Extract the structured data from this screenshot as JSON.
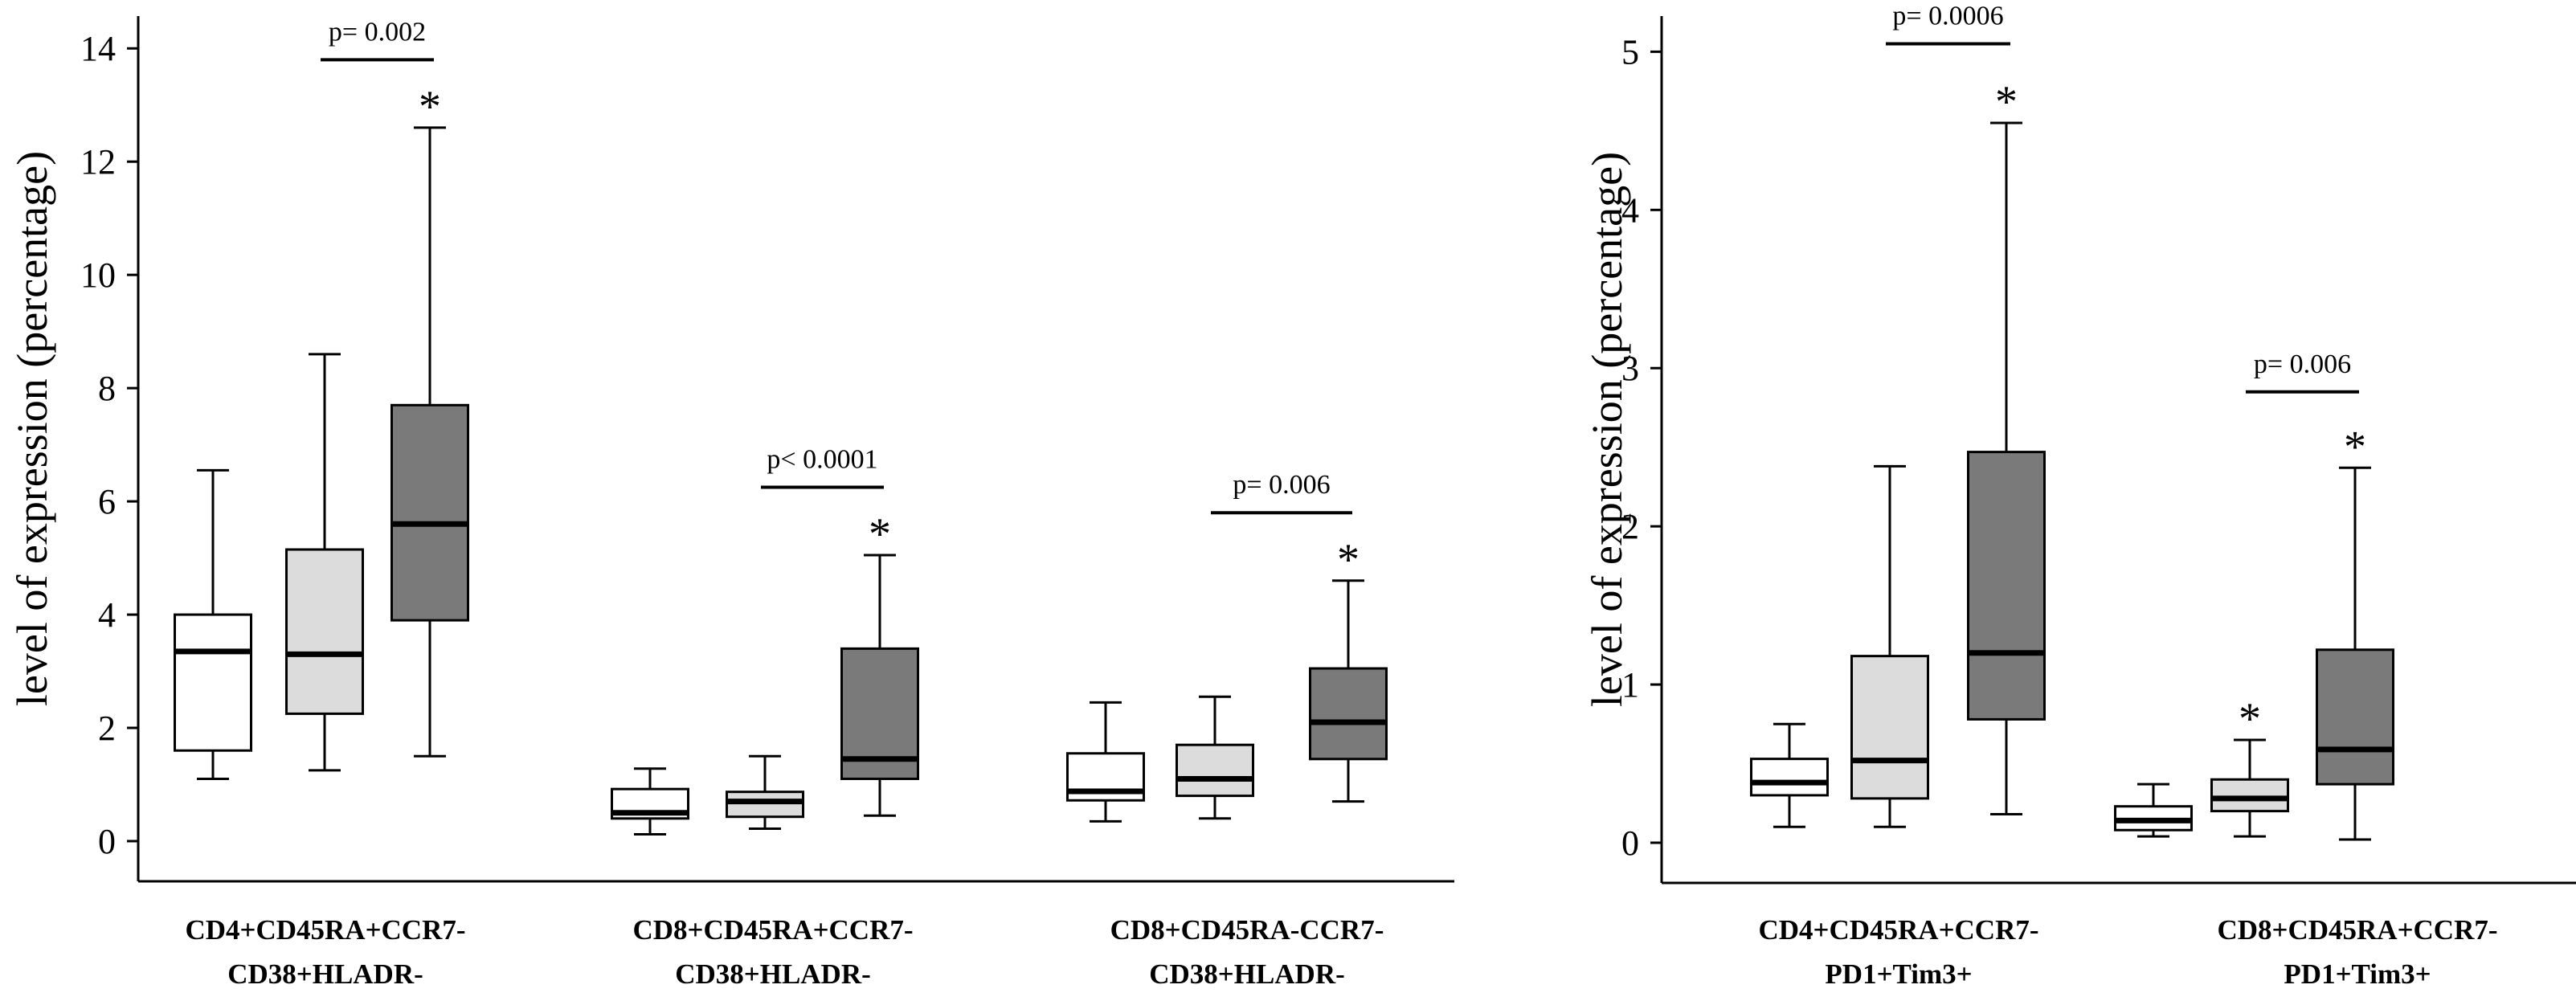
{
  "colors": {
    "group1": "#ffffff",
    "group2": "#dcdcdc",
    "group3": "#7a7a7a",
    "stroke": "#000000"
  },
  "chart_data": [
    {
      "type": "box",
      "ylabel": "level of expression (percentage)",
      "ylim": [
        0,
        14.5
      ],
      "yticks": [
        0,
        2,
        4,
        6,
        8,
        10,
        12,
        14
      ],
      "categories": [
        {
          "line1": "CD4+CD45RA+CCR7-",
          "line2": "CD38+HLADR-"
        },
        {
          "line1": "CD8+CD45RA+CCR7-",
          "line2": "CD38+HLADR-"
        },
        {
          "line1": "CD8+CD45RA-CCR7-",
          "line2": "CD38+HLADR-"
        }
      ],
      "boxes": [
        {
          "category": 0,
          "group": 1,
          "min": 1.1,
          "q1": 1.6,
          "median": 3.35,
          "q3": 4.0,
          "max": 6.55
        },
        {
          "category": 0,
          "group": 2,
          "min": 1.25,
          "q1": 2.25,
          "median": 3.3,
          "q3": 5.15,
          "max": 8.6
        },
        {
          "category": 0,
          "group": 3,
          "min": 1.5,
          "q1": 3.9,
          "median": 5.6,
          "q3": 7.7,
          "max": 12.6,
          "star": "*"
        },
        {
          "category": 1,
          "group": 1,
          "min": 0.12,
          "q1": 0.4,
          "median": 0.5,
          "q3": 0.92,
          "max": 1.28
        },
        {
          "category": 1,
          "group": 2,
          "min": 0.22,
          "q1": 0.43,
          "median": 0.7,
          "q3": 0.87,
          "max": 1.5
        },
        {
          "category": 1,
          "group": 3,
          "min": 0.45,
          "q1": 1.1,
          "median": 1.45,
          "q3": 3.4,
          "max": 5.05,
          "star": "*"
        },
        {
          "category": 2,
          "group": 1,
          "min": 0.35,
          "q1": 0.72,
          "median": 0.88,
          "q3": 1.55,
          "max": 2.45
        },
        {
          "category": 2,
          "group": 2,
          "min": 0.4,
          "q1": 0.8,
          "median": 1.1,
          "q3": 1.7,
          "max": 2.55
        },
        {
          "category": 2,
          "group": 3,
          "min": 0.7,
          "q1": 1.45,
          "median": 2.1,
          "q3": 3.05,
          "max": 4.6,
          "star": "*"
        }
      ],
      "pvalues": [
        {
          "category": 0,
          "text": "p= 0.002",
          "y": 13.8
        },
        {
          "category": 1,
          "text": "p< 0.0001",
          "y": 6.25
        },
        {
          "category": 2,
          "text": "p= 0.006",
          "y": 5.8
        }
      ]
    },
    {
      "type": "box",
      "ylabel": "level of expression (percentage)",
      "ylim": [
        0,
        5.2
      ],
      "yticks": [
        0,
        1,
        2,
        3,
        4,
        5
      ],
      "categories": [
        {
          "line1": "CD4+CD45RA+CCR7-",
          "line2": "PD1+Tim3+"
        },
        {
          "line1": "CD8+CD45RA+CCR7-",
          "line2": "PD1+Tim3+"
        }
      ],
      "boxes": [
        {
          "category": 0,
          "group": 1,
          "min": 0.1,
          "q1": 0.3,
          "median": 0.38,
          "q3": 0.53,
          "max": 0.75
        },
        {
          "category": 0,
          "group": 2,
          "min": 0.1,
          "q1": 0.28,
          "median": 0.52,
          "q3": 1.18,
          "max": 2.38
        },
        {
          "category": 0,
          "group": 3,
          "min": 0.18,
          "q1": 0.78,
          "median": 1.2,
          "q3": 2.47,
          "max": 4.55,
          "star": "*"
        },
        {
          "category": 1,
          "group": 1,
          "min": 0.04,
          "q1": 0.08,
          "median": 0.14,
          "q3": 0.23,
          "max": 0.37
        },
        {
          "category": 1,
          "group": 2,
          "min": 0.04,
          "q1": 0.2,
          "median": 0.28,
          "q3": 0.4,
          "max": 0.65,
          "star": "*"
        },
        {
          "category": 1,
          "group": 3,
          "min": 0.02,
          "q1": 0.37,
          "median": 0.59,
          "q3": 1.22,
          "max": 2.37,
          "star": "*"
        }
      ],
      "pvalues": [
        {
          "category": 0,
          "text": "p= 0.0006",
          "y": 5.05
        },
        {
          "category": 1,
          "text": "p= 0.006",
          "y": 2.85
        }
      ]
    }
  ]
}
